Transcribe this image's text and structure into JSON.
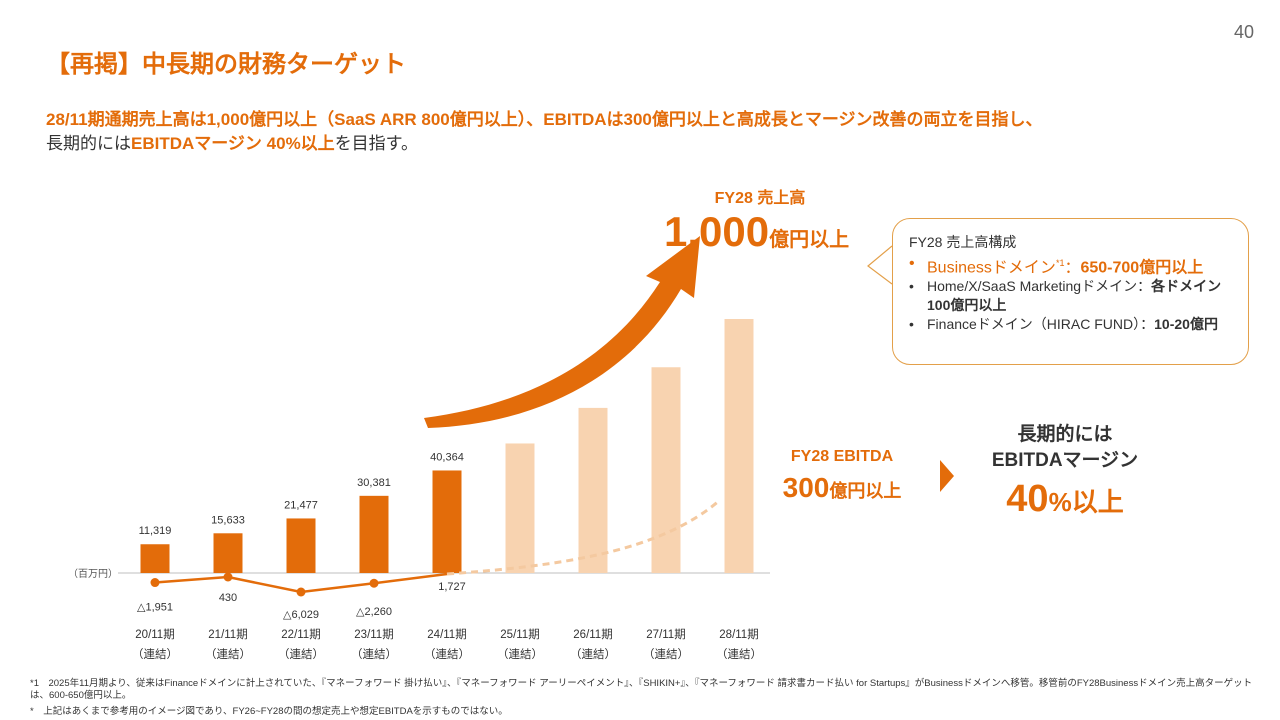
{
  "page_number": "40",
  "title": "【再掲】中長期の財務ターゲット",
  "subtitle": {
    "line1": "28/11期通期売上高は1,000億円以上（SaaS ARR 800億円以上）、EBITDAは300億円以上と高成長とマージン改善の両立を目指し、",
    "line2_prefix": "長期的には",
    "line2_bold": "EBITDAマージン 40%以上",
    "line2_suffix": "を目指す。"
  },
  "fy28_revenue": {
    "label": "FY28 売上高",
    "value": "1,000",
    "unit": "億円以上"
  },
  "breakdown": {
    "heading": "FY28 売上高構成",
    "items": [
      {
        "label": "Businessドメイン",
        "note": "*1",
        "sep": "：",
        "value": "650-700億円以上"
      },
      {
        "label": "Home/X/SaaS Marketingドメイン：",
        "value": "各ドメイン100億円以上"
      },
      {
        "label": "Financeドメイン（HIRAC FUND）：",
        "value": "10-20億円"
      }
    ]
  },
  "fy28_ebitda": {
    "label": "FY28 EBITDA",
    "value": "300",
    "unit": "億円以上"
  },
  "long_term": {
    "line1": "長期的には",
    "line2": "EBITDAマージン",
    "value": "40",
    "unit": "%以上"
  },
  "chart_data": {
    "type": "bar",
    "unit_label": "（百万円）",
    "categories": [
      "20/11期",
      "21/11期",
      "22/11期",
      "23/11期",
      "24/11期",
      "25/11期",
      "26/11期",
      "27/11期",
      "28/11期"
    ],
    "category_sub": "（連結）",
    "series": [
      {
        "name": "売上高",
        "values": [
          11319,
          15633,
          21477,
          30381,
          40364,
          null,
          null,
          null,
          null
        ],
        "labels": [
          "11,319",
          "15,633",
          "21,477",
          "30,381",
          "40,364",
          "",
          "",
          "",
          ""
        ]
      },
      {
        "name": "売上高（イメージ）",
        "values": [
          null,
          null,
          null,
          null,
          null,
          51000,
          65000,
          81000,
          100000
        ]
      },
      {
        "name": "EBITDA",
        "values": [
          -1951,
          430,
          -6029,
          -2260,
          1727,
          null,
          null,
          null,
          null
        ],
        "labels": [
          "△1,951",
          "430",
          "△6,029",
          "△2,260",
          "1,727",
          "",
          "",
          "",
          ""
        ]
      }
    ],
    "colors": {
      "actual": "#e36c0a",
      "projected": "#f8d3b0",
      "ebitda_line": "#e36c0a",
      "ebitda_projection": "#f4c9a0"
    }
  },
  "footnotes": [
    "*1　2025年11月期より、従来はFinanceドメインに計上されていた、『マネーフォワード 掛け払い』、『マネーフォワード アーリーペイメント』、『SHIKIN+』、『マネーフォワード 請求書カード払い for Startups』がBusinessドメインへ移管。移管前のFY28Businessドメイン売上高ターゲットは、600-650億円以上。",
    "*　上記はあくまで参考用のイメージ図であり、FY26~FY28の間の想定売上や想定EBITDAを示すものではない。"
  ]
}
